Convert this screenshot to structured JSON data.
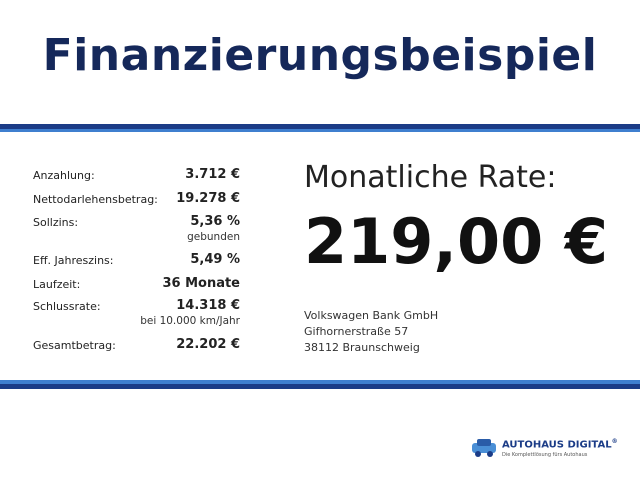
{
  "header": {
    "title": "Finanzierungsbeispiel"
  },
  "table": {
    "rows": [
      {
        "label": "Anzahlung:",
        "value": "3.712 €"
      },
      {
        "label": "Nettodarlehensbetrag:",
        "value": "19.278 €"
      },
      {
        "label": "Sollzins:",
        "value": "5,36 %",
        "note": "gebunden"
      },
      {
        "label": "Eff. Jahreszins:",
        "value": "5,49 %"
      },
      {
        "label": "Laufzeit:",
        "value": "36 Monate"
      },
      {
        "label": "Schlussrate:",
        "value": "14.318 €",
        "note": "bei 10.000 km/Jahr"
      },
      {
        "label": "Gesamtbetrag:",
        "value": "22.202 €"
      }
    ]
  },
  "rate": {
    "label": "Monatliche Rate:",
    "value": "219,00 €"
  },
  "bank": {
    "name": "Volkswagen Bank GmbH",
    "street": "Gifhornerstraße 57",
    "city": "38112 Braunschweig"
  },
  "logo": {
    "brand": "AUTOHAUS DIGITAL",
    "registered": "®",
    "tagline": "Die Komplettlösung fürs Autohaus"
  }
}
